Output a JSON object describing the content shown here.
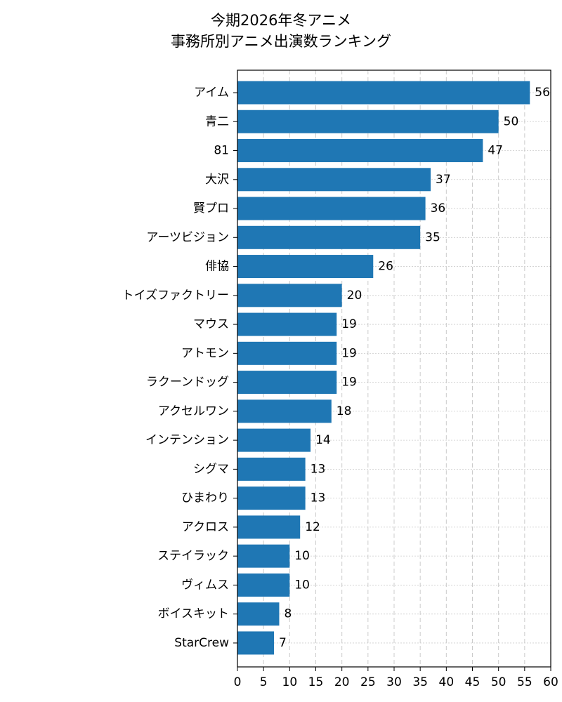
{
  "chart_data": {
    "type": "barh",
    "title": [
      "今期2026年冬アニメ",
      "事務所別アニメ出演数ランキング"
    ],
    "categories": [
      "アイム",
      "青二",
      "81",
      "大沢",
      "賢プロ",
      "アーツビジョン",
      "俳協",
      "トイズファクトリー",
      "マウス",
      "アトモン",
      "ラクーンドッグ",
      "アクセルワン",
      "インテンション",
      "シグマ",
      "ひまわり",
      "アクロス",
      "ステイラック",
      "ヴィムス",
      "ボイスキット",
      "StarCrew"
    ],
    "values": [
      56,
      50,
      47,
      37,
      36,
      35,
      26,
      20,
      19,
      19,
      19,
      18,
      14,
      13,
      13,
      12,
      10,
      10,
      8,
      7
    ],
    "color": "#1f77b4",
    "xlim": [
      0,
      60
    ],
    "xticks": [
      0,
      5,
      10,
      15,
      20,
      25,
      30,
      35,
      40,
      45,
      50,
      55,
      60
    ],
    "grid": true
  }
}
